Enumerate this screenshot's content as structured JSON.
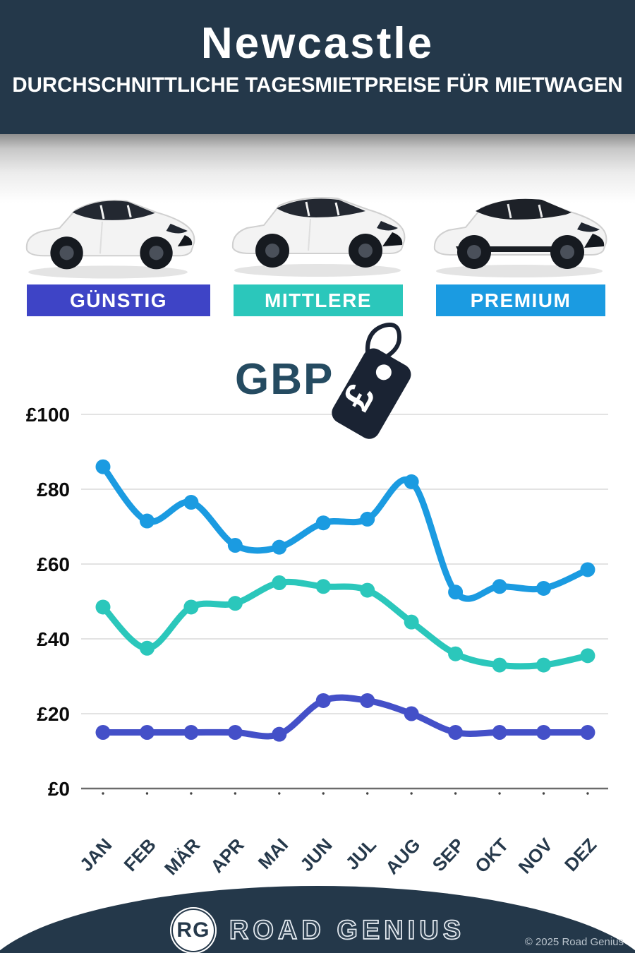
{
  "header": {
    "title": "Newcastle",
    "subtitle": "DURCHSCHNITTLICHE TAGESMIETPREISE FÜR MIETWAGEN"
  },
  "categories_bar": {
    "items": [
      {
        "label": "GÜNSTIG",
        "color": "#3E44C6"
      },
      {
        "label": "MITTLERE",
        "color": "#2BC7BB"
      },
      {
        "label": "PREMIUM",
        "color": "#1B9BE1"
      }
    ]
  },
  "currency": {
    "code": "GBP",
    "symbol": "£"
  },
  "chart_data": {
    "type": "line",
    "title": "",
    "unit": "£",
    "categories": [
      "JAN",
      "FEB",
      "MÄR",
      "APR",
      "MAI",
      "JUN",
      "JUL",
      "AUG",
      "SEP",
      "OKT",
      "NOV",
      "DEZ"
    ],
    "yticks": [
      0,
      20,
      40,
      60,
      80,
      100
    ],
    "ylim": [
      0,
      100
    ],
    "grid": true,
    "legend_position": "none",
    "series": [
      {
        "name": "GÜNSTIG",
        "color": "#4450C8",
        "values": [
          15,
          15,
          15,
          15,
          14.5,
          23.5,
          23.5,
          20,
          15,
          15,
          15,
          15
        ]
      },
      {
        "name": "MITTLERE",
        "color": "#2BC7BB",
        "values": [
          48.5,
          37.5,
          48.5,
          49.5,
          55,
          54,
          53,
          44.5,
          36,
          33,
          33,
          35.5
        ]
      },
      {
        "name": "PREMIUM",
        "color": "#1B9BE1",
        "values": [
          86,
          71.5,
          76.5,
          65,
          64.5,
          71,
          72,
          82,
          52.5,
          54,
          53.5,
          58.5
        ]
      }
    ]
  },
  "footer": {
    "logo_initials": "RG",
    "brand": "ROAD GENIUS",
    "copyright": "© 2025 Road Genius"
  }
}
